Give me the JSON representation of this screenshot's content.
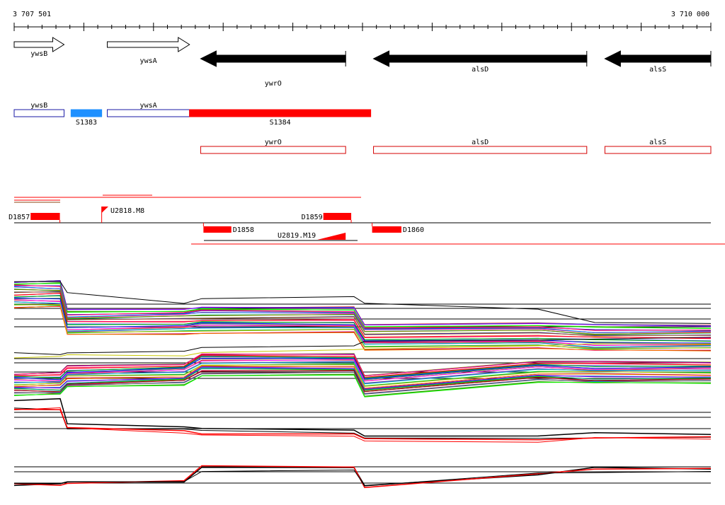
{
  "scale": {
    "start_label": "3 707 501",
    "end_label": "3 710 000",
    "start": 3707501,
    "end": 3710000
  },
  "gene_arrows": [
    {
      "name": "ywsB",
      "start": 3707501,
      "end": 3707680,
      "strand": "+",
      "filled": false
    },
    {
      "name": "ywsA",
      "start": 3707835,
      "end": 3708130,
      "strand": "+",
      "filled": false
    },
    {
      "name": "ywrO",
      "start": 3708170,
      "end": 3708690,
      "strand": "-",
      "filled": true
    },
    {
      "name": "alsD",
      "start": 3708790,
      "end": 3709555,
      "strand": "-",
      "filled": true
    },
    {
      "name": "alsS",
      "start": 3709620,
      "end": 3710000,
      "strand": "-",
      "filled": true
    }
  ],
  "segments": [
    {
      "name": "ywsB",
      "start": 3707501,
      "end": 3707680,
      "kind": "gene"
    },
    {
      "name": "S1383",
      "start": 3707705,
      "end": 3707815,
      "kind": "segment-blue"
    },
    {
      "name": "ywsA",
      "start": 3707835,
      "end": 3708130,
      "kind": "gene"
    },
    {
      "name": "S1384",
      "start": 3708130,
      "end": 3708780,
      "kind": "segment-red"
    }
  ],
  "operons": [
    {
      "name": "ywrO",
      "start": 3708170,
      "end": 3708690
    },
    {
      "name": "alsD",
      "start": 3708790,
      "end": 3709555
    },
    {
      "name": "alsS",
      "start": 3709620,
      "end": 3710000
    }
  ],
  "features_upper": [
    {
      "name": "D1857",
      "start": 3707560,
      "end": 3707665,
      "kind": "box"
    },
    {
      "name": "U2818.M8",
      "start": 3707815,
      "end": 3707915,
      "kind": "wedge"
    },
    {
      "name": "D1859",
      "start": 3708610,
      "end": 3708710,
      "kind": "box"
    }
  ],
  "features_lower": [
    {
      "name": "D1858",
      "start": 3708180,
      "end": 3708280,
      "kind": "box"
    },
    {
      "name": "U2819.M19",
      "start": 3708590,
      "end": 3708690,
      "kind": "wedge"
    },
    {
      "name": "D1860",
      "start": 3708785,
      "end": 3708890,
      "kind": "box"
    }
  ],
  "colors": {
    "gene_outline": "#1a1aa6",
    "segment_blue": "#1e90ff",
    "feature_red": "#ff0000",
    "operon_outline": "#d40000",
    "axis": "#000000"
  }
}
